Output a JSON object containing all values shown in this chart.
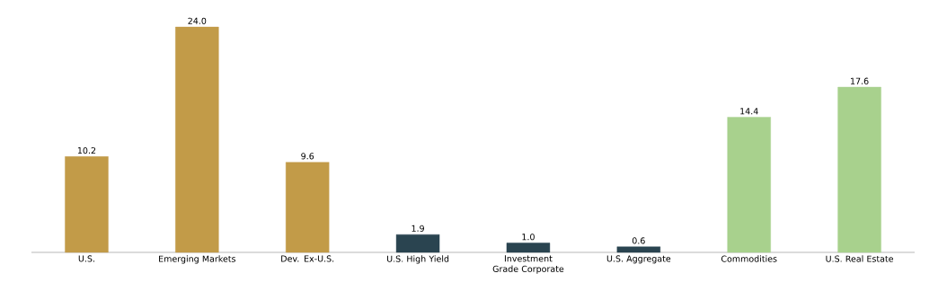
{
  "chart_data": {
    "type": "bar",
    "categories": [
      "U.S.",
      "Emerging Markets",
      "Dev. Ex-U.S.",
      "U.S. High Yield",
      "Investment Grade Corporate",
      "U.S. Aggregate",
      "Commodities",
      "U.S. Real Estate"
    ],
    "values": [
      10.2,
      24.0,
      9.6,
      1.9,
      1.0,
      0.6,
      14.4,
      17.6
    ],
    "colors": [
      "#c29b48",
      "#c29b48",
      "#c29b48",
      "#2a4450",
      "#2a4450",
      "#2a4450",
      "#a8d18d",
      "#a8d18d"
    ],
    "value_labels": [
      "10.2",
      "24.0",
      "9.6",
      "1.9",
      "1.0",
      "0.6",
      "14.4",
      "17.6"
    ]
  }
}
